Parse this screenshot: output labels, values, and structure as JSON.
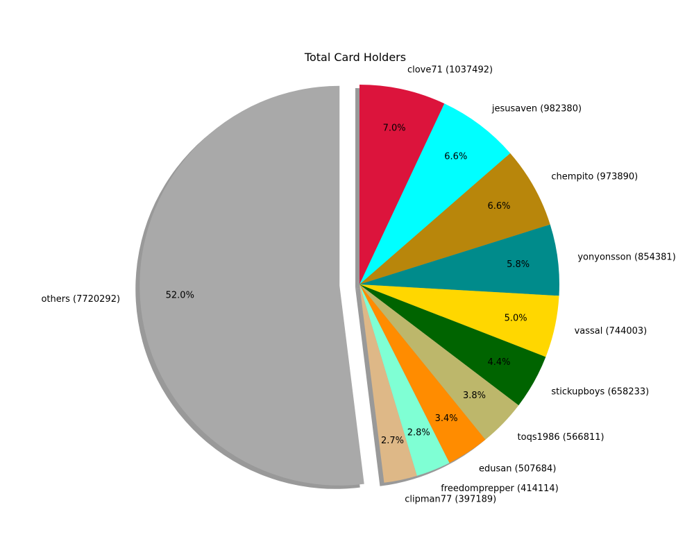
{
  "chart_data": {
    "type": "pie",
    "title": "Total Card Holders",
    "slices": [
      {
        "name": "clove71",
        "value": 1037492,
        "label": "clove71 (1037492)",
        "percent_label": "7.0%",
        "color": "#dc143c"
      },
      {
        "name": "jesusaven",
        "value": 982380,
        "label": "jesusaven (982380)",
        "percent_label": "6.6%",
        "color": "#00ffff"
      },
      {
        "name": "chempito",
        "value": 973890,
        "label": "chempito (973890)",
        "percent_label": "6.6%",
        "color": "#b8860b"
      },
      {
        "name": "yonyonsson",
        "value": 854381,
        "label": "yonyonsson (854381)",
        "percent_label": "5.8%",
        "color": "#008b8b"
      },
      {
        "name": "vassal",
        "value": 744003,
        "label": "vassal (744003)",
        "percent_label": "5.0%",
        "color": "#ffd700"
      },
      {
        "name": "stickupboys",
        "value": 658233,
        "label": "stickupboys (658233)",
        "percent_label": "4.4%",
        "color": "#006400"
      },
      {
        "name": "toqs1986",
        "value": 566811,
        "label": "toqs1986 (566811)",
        "percent_label": "3.8%",
        "color": "#bdb76b"
      },
      {
        "name": "edusan",
        "value": 507684,
        "label": "edusan (507684)",
        "percent_label": "3.4%",
        "color": "#ff8c00"
      },
      {
        "name": "freedomprepper",
        "value": 414114,
        "label": "freedomprepper (414114)",
        "percent_label": "2.8%",
        "color": "#7fffd4"
      },
      {
        "name": "clipman77",
        "value": 397189,
        "label": "clipman77 (397189)",
        "percent_label": "2.7%",
        "color": "#deb887"
      },
      {
        "name": "others",
        "value": 7720292,
        "label": "others (7720292)",
        "percent_label": "52.0%",
        "color": "#a9a9a9",
        "exploded": true
      }
    ],
    "start_angle_deg": 90,
    "direction": "clockwise",
    "shadow": true
  }
}
